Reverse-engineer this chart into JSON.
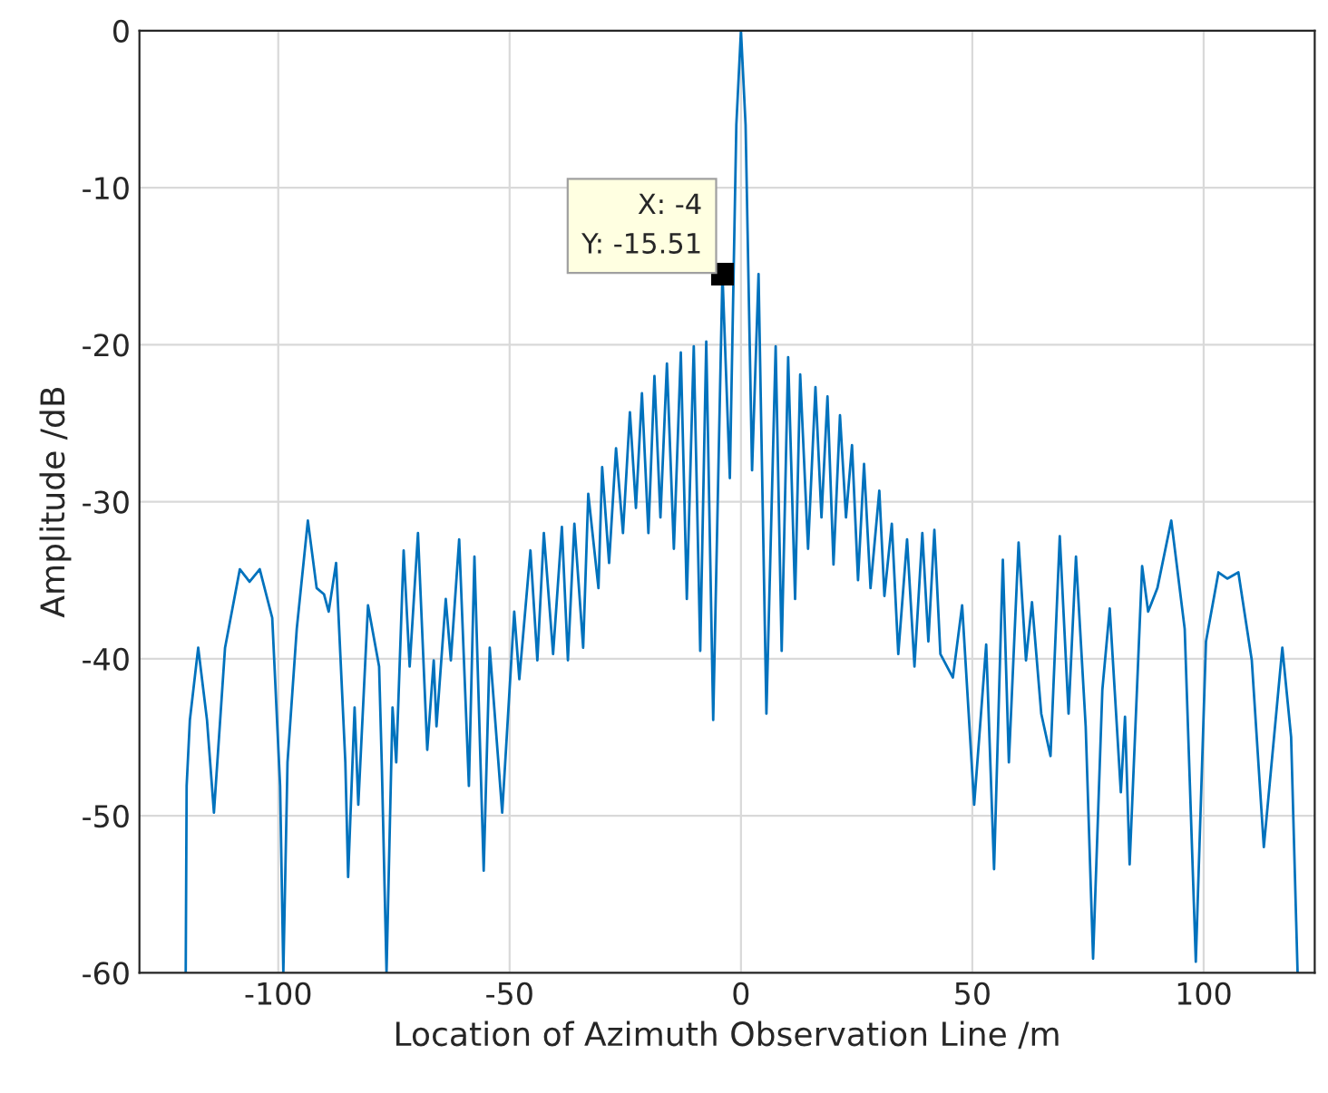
{
  "chart_data": {
    "type": "line",
    "xlabel": "Location of Azimuth Observation Line /m",
    "ylabel": "Amplitude /dB",
    "xlim": [
      -130,
      124
    ],
    "xticks": [
      -100,
      -50,
      0,
      50,
      100
    ],
    "ylim": [
      -60,
      0
    ],
    "yticks": [
      -60,
      -50,
      -40,
      -30,
      -20,
      -10,
      0
    ],
    "grid": true,
    "marker": "none",
    "line_style": "solid",
    "annotations": [
      {
        "text": "X: -4\nY: -15.51",
        "x": -4,
        "y": -15.51
      }
    ],
    "series": [
      {
        "color": "#0072bd",
        "x": [
          -120.0,
          -119.8,
          -119.1,
          -117.3,
          -115.4,
          -113.9,
          -111.5,
          -108.3,
          -106.2,
          -104.0,
          -101.3,
          -99.6,
          -98.9,
          -98.0,
          -96.0,
          -93.6,
          -91.7,
          -90.1,
          -89.1,
          -87.5,
          -85.5,
          -84.9,
          -83.5,
          -82.7,
          -80.6,
          -78.2,
          -77.6,
          -76.6,
          -75.3,
          -74.5,
          -72.9,
          -71.6,
          -69.8,
          -67.8,
          -66.4,
          -65.8,
          -63.8,
          -62.7,
          -60.9,
          -58.8,
          -57.6,
          -55.6,
          -54.3,
          -51.6,
          -49.0,
          -47.9,
          -45.5,
          -44.0,
          -42.6,
          -40.6,
          -38.7,
          -37.4,
          -36.0,
          -34.1,
          -33.0,
          -30.8,
          -30.0,
          -28.5,
          -27.0,
          -25.5,
          -24.0,
          -22.7,
          -21.4,
          -20.0,
          -18.7,
          -17.4,
          -16.0,
          -14.5,
          -13.0,
          -11.7,
          -10.2,
          -8.8,
          -7.5,
          -6.0,
          -4.0,
          -2.4,
          -1.0,
          0.0,
          1.0,
          2.4,
          3.8,
          5.5,
          7.5,
          8.8,
          10.2,
          11.7,
          12.8,
          14.5,
          16.1,
          17.4,
          18.7,
          20.0,
          21.4,
          22.7,
          24.0,
          25.3,
          26.6,
          28.0,
          29.9,
          31.0,
          32.6,
          34.0,
          35.9,
          37.5,
          39.2,
          40.5,
          41.8,
          43.1,
          45.8,
          47.8,
          50.4,
          53.0,
          54.7,
          56.6,
          57.9,
          60.0,
          61.6,
          62.9,
          64.9,
          66.9,
          68.9,
          70.8,
          72.4,
          74.5,
          76.1,
          78.1,
          79.7,
          82.1,
          83.0,
          84.0,
          86.7,
          88.0,
          90.0,
          93.0,
          95.9,
          98.3,
          100.5,
          103.2,
          105.1,
          107.5,
          110.4,
          113.0,
          117.0,
          118.9,
          120.3
        ],
        "values": [
          -60,
          -48.1,
          -43.9,
          -39.3,
          -43.9,
          -49.8,
          -39.3,
          -34.3,
          -35.1,
          -34.3,
          -37.4,
          -48.1,
          -60,
          -46.6,
          -38.1,
          -31.2,
          -35.5,
          -35.9,
          -37.0,
          -33.9,
          -46.6,
          -53.9,
          -43.1,
          -49.3,
          -36.6,
          -40.5,
          -47.0,
          -60,
          -43.1,
          -46.6,
          -33.1,
          -40.5,
          -32.0,
          -45.8,
          -40.1,
          -44.3,
          -36.2,
          -40.1,
          -32.4,
          -48.1,
          -33.5,
          -53.5,
          -39.3,
          -49.8,
          -37.0,
          -41.3,
          -33.1,
          -40.1,
          -32.0,
          -39.7,
          -31.6,
          -40.1,
          -31.4,
          -39.3,
          -29.5,
          -35.5,
          -27.8,
          -33.9,
          -26.6,
          -32.0,
          -24.3,
          -30.4,
          -23.1,
          -32.0,
          -22.0,
          -31.0,
          -21.2,
          -33.0,
          -20.5,
          -36.2,
          -20.1,
          -39.5,
          -19.8,
          -43.9,
          -15.5,
          -28.5,
          -6.0,
          0.0,
          -6.0,
          -28.0,
          -15.5,
          -43.5,
          -20.1,
          -39.5,
          -20.8,
          -36.2,
          -21.9,
          -33.0,
          -22.7,
          -31.0,
          -23.3,
          -34.0,
          -24.5,
          -31.0,
          -26.4,
          -35.0,
          -27.6,
          -35.5,
          -29.3,
          -36.0,
          -31.4,
          -39.7,
          -32.4,
          -40.5,
          -32.0,
          -38.9,
          -31.8,
          -39.7,
          -41.2,
          -36.6,
          -49.3,
          -39.1,
          -53.4,
          -33.7,
          -46.6,
          -32.6,
          -40.1,
          -36.4,
          -43.5,
          -46.2,
          -32.2,
          -43.5,
          -33.5,
          -44.3,
          -59.1,
          -42.0,
          -36.8,
          -48.5,
          -43.7,
          -53.1,
          -34.1,
          -37.0,
          -35.5,
          -31.2,
          -38.1,
          -59.3,
          -38.9,
          -34.5,
          -34.9,
          -34.5,
          -40.1,
          -52.0,
          -39.3,
          -45.0,
          -60
        ]
      }
    ]
  }
}
